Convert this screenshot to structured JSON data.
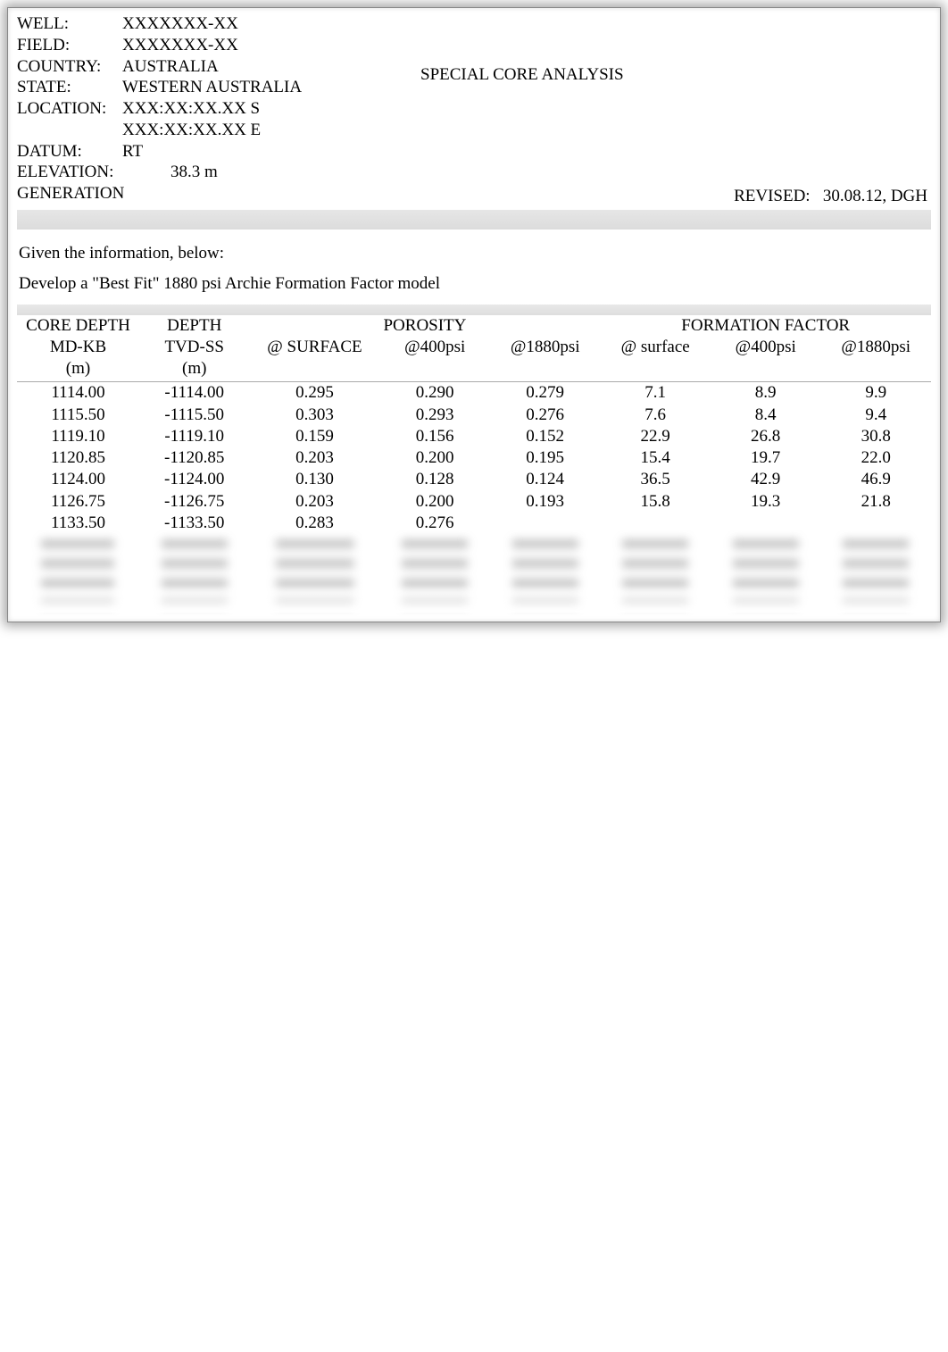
{
  "header": {
    "title": "SPECIAL CORE ANALYSIS",
    "revised_label": "REVISED:",
    "revised_value": "30.08.12, DGH",
    "meta": [
      {
        "label": "WELL:",
        "value": "XXXXXXX-XX"
      },
      {
        "label": "FIELD:",
        "value": "XXXXXXX-XX"
      },
      {
        "label": "COUNTRY:",
        "value": "AUSTRALIA"
      },
      {
        "label": "STATE:",
        "value": "WESTERN AUSTRALIA"
      },
      {
        "label": "LOCATION:",
        "value": "XXX:XX:XX.XX S"
      },
      {
        "label": "",
        "value": "XXX:XX:XX.XX E"
      },
      {
        "label": "DATUM:",
        "value": "RT"
      },
      {
        "label": "ELEVATION:",
        "value": "38.3 m",
        "indent": true
      },
      {
        "label": "GENERATION",
        "value": ""
      }
    ]
  },
  "instructions": {
    "line1": "Given the information, below:",
    "line2": "Develop a \"Best Fit\" 1880 psi Archie Formation Factor model"
  },
  "table": {
    "group_headers": {
      "core_depth": "CORE DEPTH",
      "depth": "DEPTH",
      "porosity": "POROSITY",
      "formation_factor": "FORMATION FACTOR"
    },
    "sub_headers": {
      "md_kb": "MD-KB",
      "tvd_ss": "TVD-SS",
      "p_surface": "@ SURFACE",
      "p_400": "@400psi",
      "p_1880": "@1880psi",
      "f_surface": "@ surface",
      "f_400": "@400psi",
      "f_1880": "@1880psi"
    },
    "unit_headers": {
      "md_kb": "(m)",
      "tvd_ss": "(m)"
    },
    "rows": [
      {
        "md": "1114.00",
        "tvd": "-1114.00",
        "ps": "0.295",
        "p4": "0.290",
        "p18": "0.279",
        "fs": "7.1",
        "f4": "8.9",
        "f18": "9.9"
      },
      {
        "md": "1115.50",
        "tvd": "-1115.50",
        "ps": "0.303",
        "p4": "0.293",
        "p18": "0.276",
        "fs": "7.6",
        "f4": "8.4",
        "f18": "9.4"
      },
      {
        "md": "1119.10",
        "tvd": "-1119.10",
        "ps": "0.159",
        "p4": "0.156",
        "p18": "0.152",
        "fs": "22.9",
        "f4": "26.8",
        "f18": "30.8"
      },
      {
        "md": "1120.85",
        "tvd": "-1120.85",
        "ps": "0.203",
        "p4": "0.200",
        "p18": "0.195",
        "fs": "15.4",
        "f4": "19.7",
        "f18": "22.0"
      },
      {
        "md": "1124.00",
        "tvd": "-1124.00",
        "ps": "0.130",
        "p4": "0.128",
        "p18": "0.124",
        "fs": "36.5",
        "f4": "42.9",
        "f18": "46.9"
      },
      {
        "md": "1126.75",
        "tvd": "-1126.75",
        "ps": "0.203",
        "p4": "0.200",
        "p18": "0.193",
        "fs": "15.8",
        "f4": "19.3",
        "f18": "21.8"
      },
      {
        "md": "1133.50",
        "tvd": "-1133.50",
        "ps": "0.283",
        "p4": "0.276",
        "p18": "",
        "fs": "",
        "f4": "",
        "f18": ""
      }
    ],
    "blurred_row_count": 4
  },
  "style": {
    "font_family": "Times New Roman, serif",
    "font_size_pt": 14,
    "text_color": "#000000",
    "background_color": "#ffffff",
    "stripe_color": "#e0e0e0",
    "frame_shadow": "rgba(0,0,0,0.35)"
  }
}
